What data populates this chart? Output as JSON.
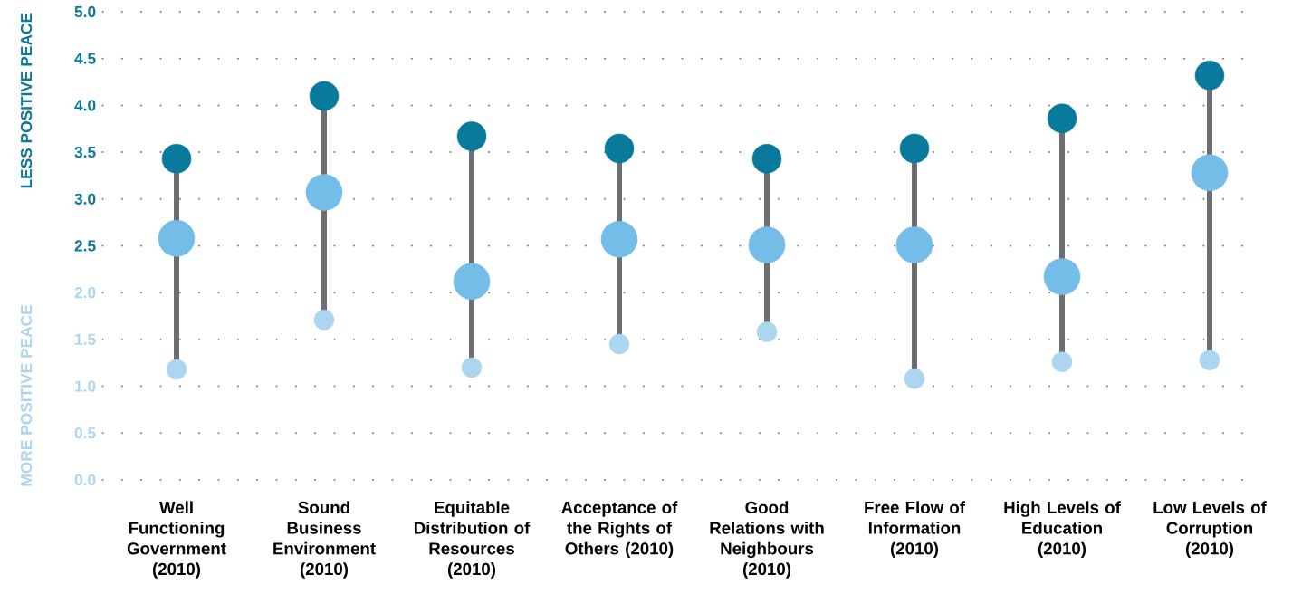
{
  "chart_data": {
    "type": "scatter",
    "ylabel": "LESS POSITIVE PEACE",
    "annotations": [
      "MORE POSITIVE PEACE"
    ],
    "categories": [
      "Well Functioning Government (2010)",
      "Sound Business Environment (2010)",
      "Equitable Distribution of Resources (2010)",
      "Acceptance of the Rights of Others (2010)",
      "Good Relations with Neighbours (2010)",
      "Free Flow of Information (2010)",
      "High Levels of Education (2010)",
      "Low Levels of Corruption (2010)"
    ],
    "series": [
      {
        "color": "#0a7a9c",
        "values": [
          3.43,
          4.1,
          3.67,
          3.54,
          3.43,
          3.54,
          3.86,
          4.32
        ]
      },
      {
        "color": "#74bde8",
        "values": [
          2.58,
          3.07,
          2.12,
          2.57,
          2.51,
          2.51,
          2.17,
          3.28
        ]
      },
      {
        "color": "#acd6f0",
        "values": [
          1.18,
          1.71,
          1.2,
          1.45,
          1.58,
          1.08,
          1.26,
          1.28
        ]
      }
    ],
    "ylim": [
      0,
      5
    ],
    "yticks": [
      {
        "value": 0,
        "label": "0.0"
      },
      {
        "value": 0.5,
        "label": "0.5"
      },
      {
        "value": 1,
        "label": "1.0"
      },
      {
        "value": 1.5,
        "label": "1.5"
      },
      {
        "value": 2,
        "label": "2.0"
      },
      {
        "value": 2.5,
        "label": "2.5"
      },
      {
        "value": 3,
        "label": "3.0"
      },
      {
        "value": 3.5,
        "label": "3.5"
      },
      {
        "value": 4,
        "label": "4.0"
      },
      {
        "value": 4.5,
        "label": "4.5"
      },
      {
        "value": 5,
        "label": "5.0"
      }
    ],
    "grid": "y",
    "marker": "circle"
  }
}
